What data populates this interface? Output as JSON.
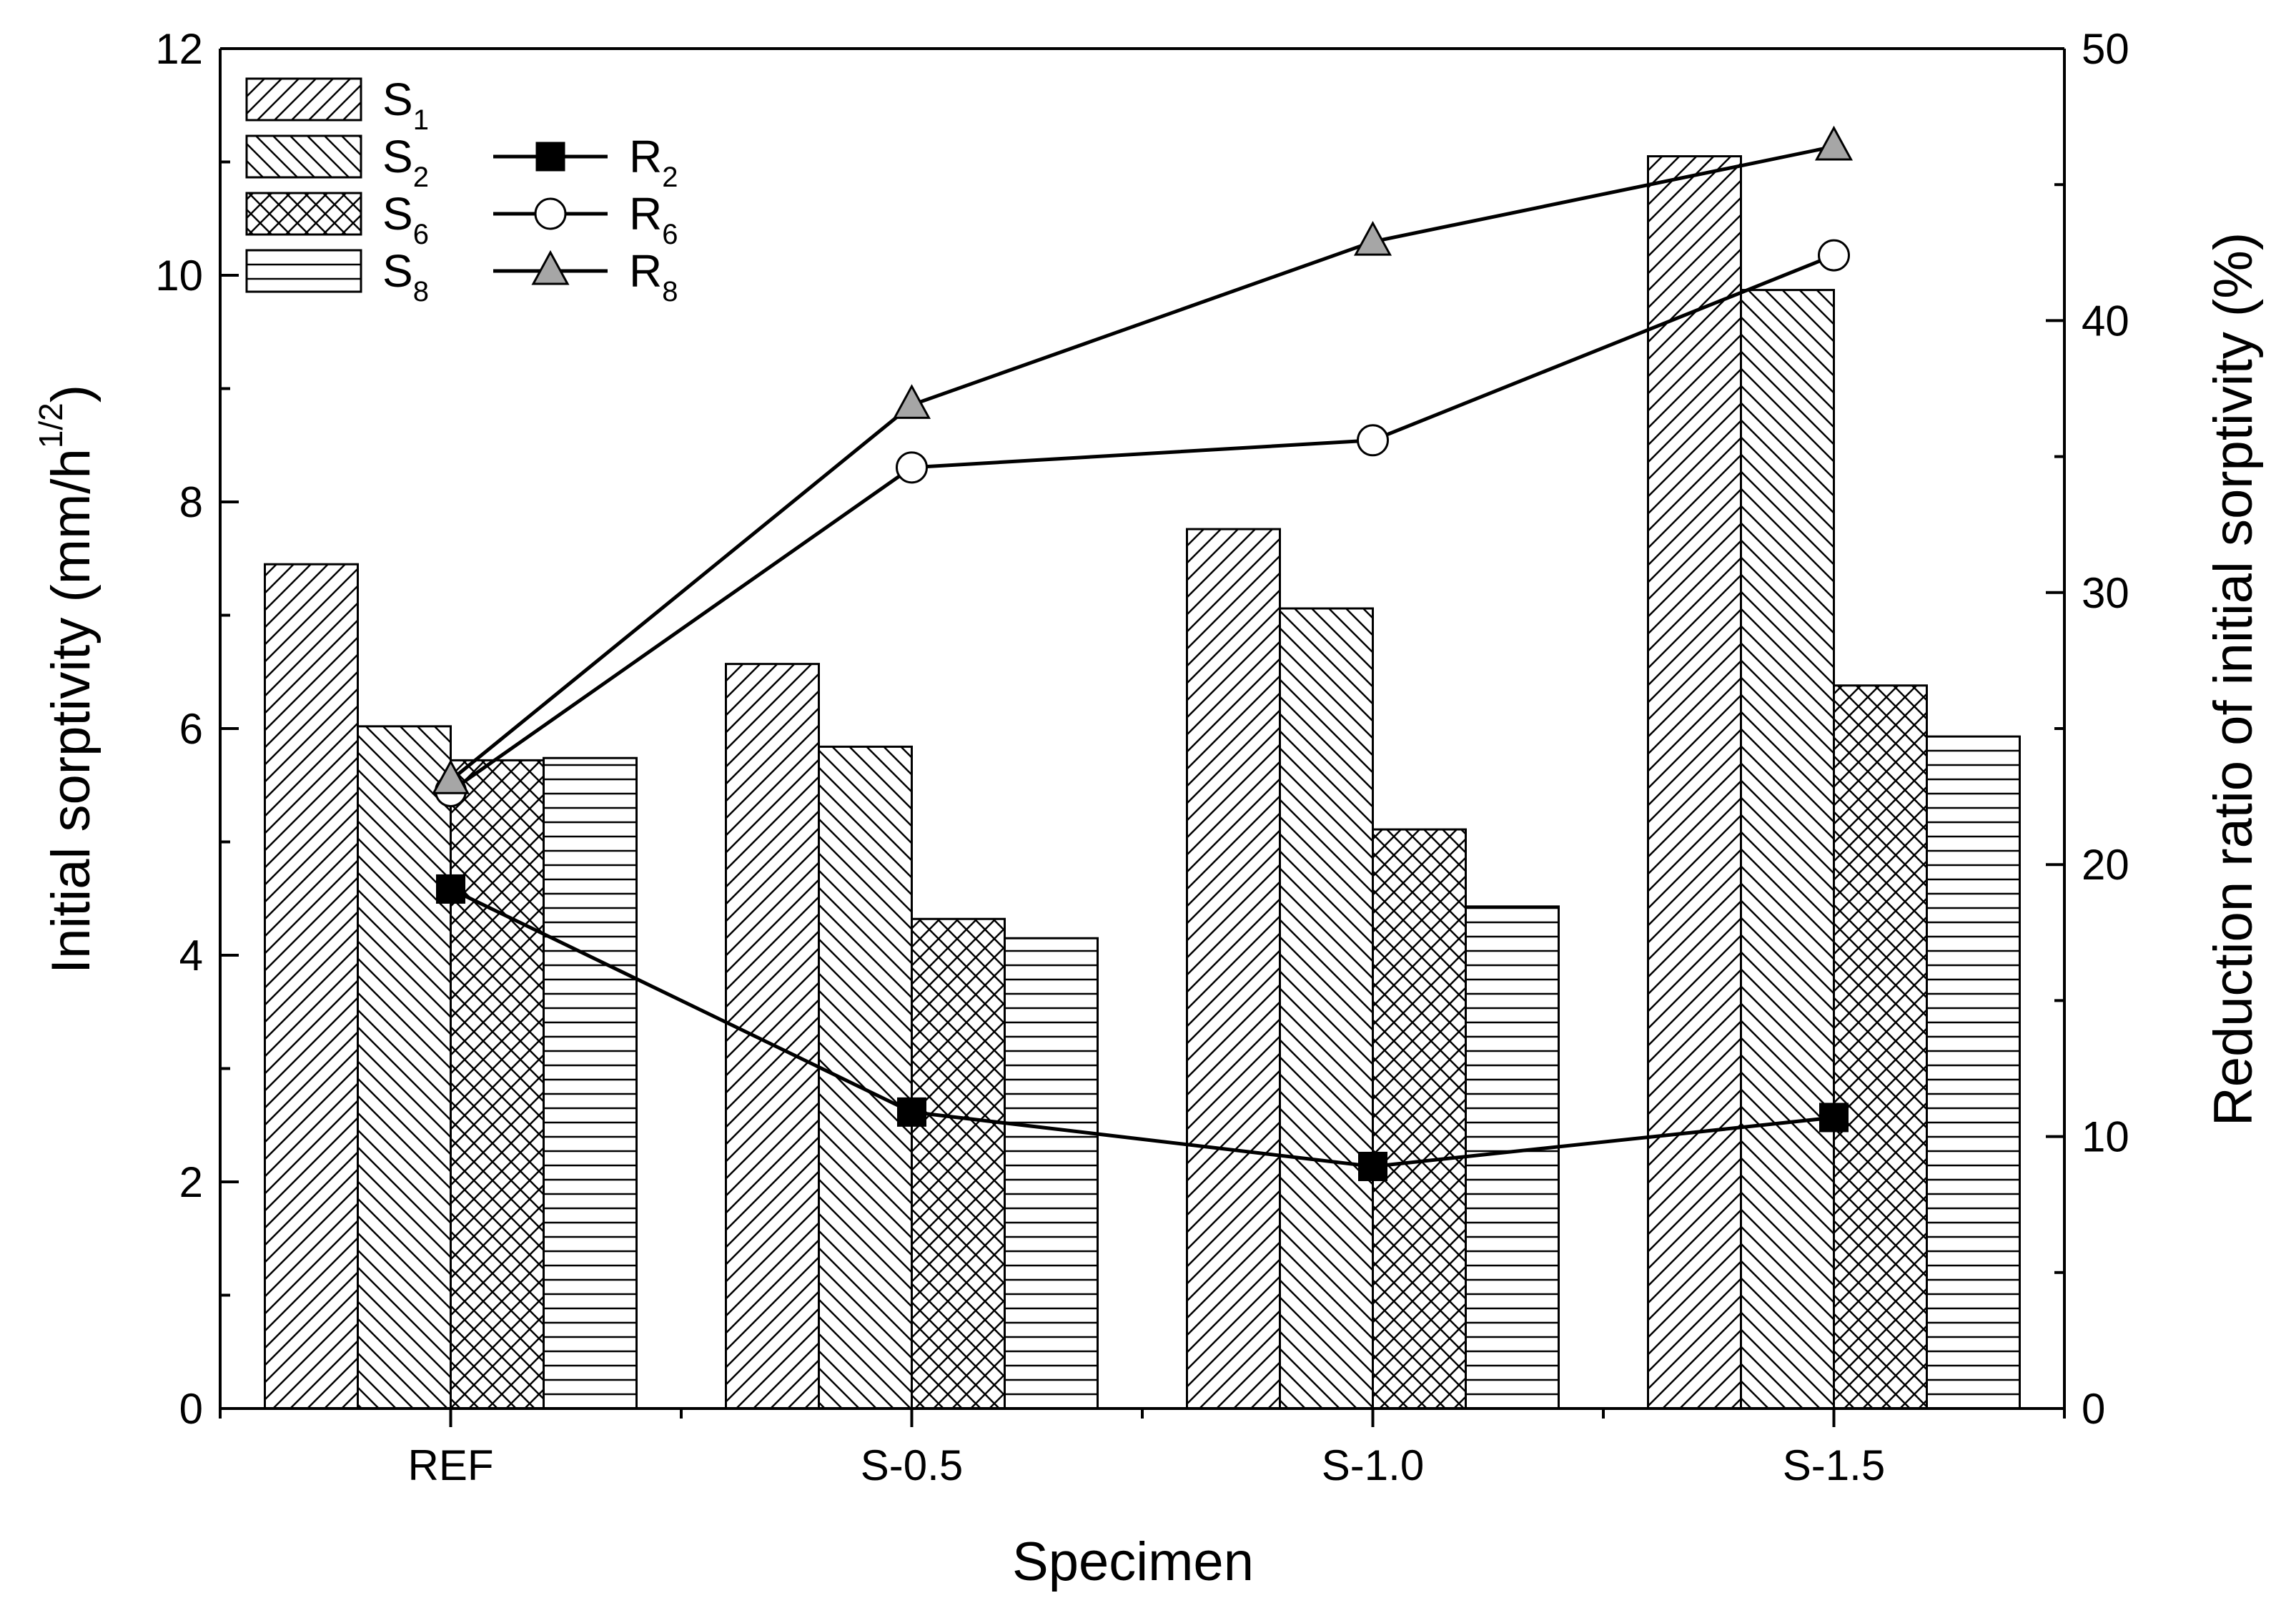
{
  "chart_data": {
    "type": "bar",
    "xlabel": "Specimen",
    "ylabel": "Initial sorptivity (mm/h",
    "ylabel_sup": "1/2",
    "ylabel_end": ")",
    "y2label": "Reduction ratio of initial sorptivity (%)",
    "categories": [
      "REF",
      "S-0.5",
      "S-1.0",
      "S-1.5"
    ],
    "ylim": [
      0,
      12
    ],
    "yticks": [
      "0",
      "2",
      "4",
      "6",
      "8",
      "10",
      "12"
    ],
    "y2lim": [
      0,
      50
    ],
    "y2ticks": [
      "0",
      "10",
      "20",
      "30",
      "40",
      "50"
    ],
    "series": [
      {
        "name": "S",
        "sub": "1",
        "pattern": "diag-right",
        "values": [
          7.45,
          6.57,
          7.76,
          11.05
        ]
      },
      {
        "name": "S",
        "sub": "2",
        "pattern": "diag-left",
        "values": [
          6.02,
          5.84,
          7.06,
          9.87
        ]
      },
      {
        "name": "S",
        "sub": "6",
        "pattern": "crosshatch",
        "values": [
          5.72,
          4.32,
          5.11,
          6.38
        ]
      },
      {
        "name": "S",
        "sub": "8",
        "pattern": "horizontal",
        "values": [
          5.74,
          4.15,
          4.43,
          5.93
        ]
      }
    ],
    "line_series": [
      {
        "name": "R",
        "sub": "2",
        "marker": "square-filled",
        "values": [
          19.1,
          10.9,
          8.9,
          10.7
        ]
      },
      {
        "name": "R",
        "sub": "6",
        "marker": "circle-open",
        "values": [
          22.7,
          34.6,
          35.6,
          42.4
        ]
      },
      {
        "name": "R",
        "sub": "8",
        "marker": "triangle-gray",
        "values": [
          23.1,
          36.9,
          42.9,
          46.4
        ]
      }
    ],
    "legend_position": "top-left"
  }
}
